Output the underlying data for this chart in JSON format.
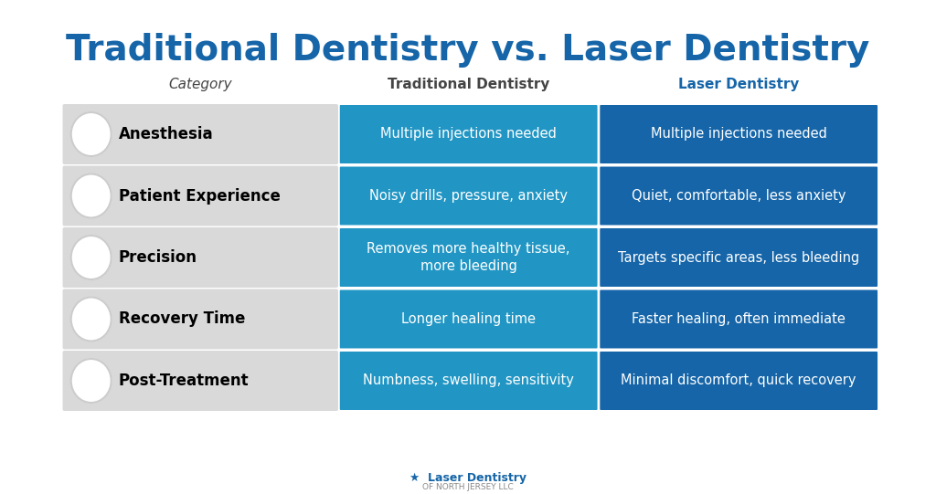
{
  "title": "Traditional Dentistry vs. Laser Dentistry",
  "title_color": "#1565a8",
  "col_header_category": "Category",
  "col_header_traditional": "Traditional Dentistry",
  "col_header_laser": "Laser Dentistry",
  "col_header_laser_color": "#1565a8",
  "rows": [
    {
      "category": "Anesthesia",
      "traditional": "Multiple injections needed",
      "laser": "Multiple injections needed"
    },
    {
      "category": "Patient Experience",
      "traditional": "Noisy drills, pressure, anxiety",
      "laser": "Quiet, comfortable, less anxiety"
    },
    {
      "category": "Precision",
      "traditional": "Removes more healthy tissue,\nmore bleeding",
      "laser": "Targets specific areas, less bleeding"
    },
    {
      "category": "Recovery Time",
      "traditional": "Longer healing time",
      "laser": "Faster healing, often immediate"
    },
    {
      "category": "Post-Treatment",
      "traditional": "Numbness, swelling, sensitivity",
      "laser": "Minimal discomfort, quick recovery"
    }
  ],
  "traditional_color": "#2196c4",
  "laser_color": "#1565a8",
  "row_bg_color": "#d9d9d9",
  "cell_text_color": "#ffffff",
  "category_text_color": "#000000",
  "background_color": "#ffffff"
}
